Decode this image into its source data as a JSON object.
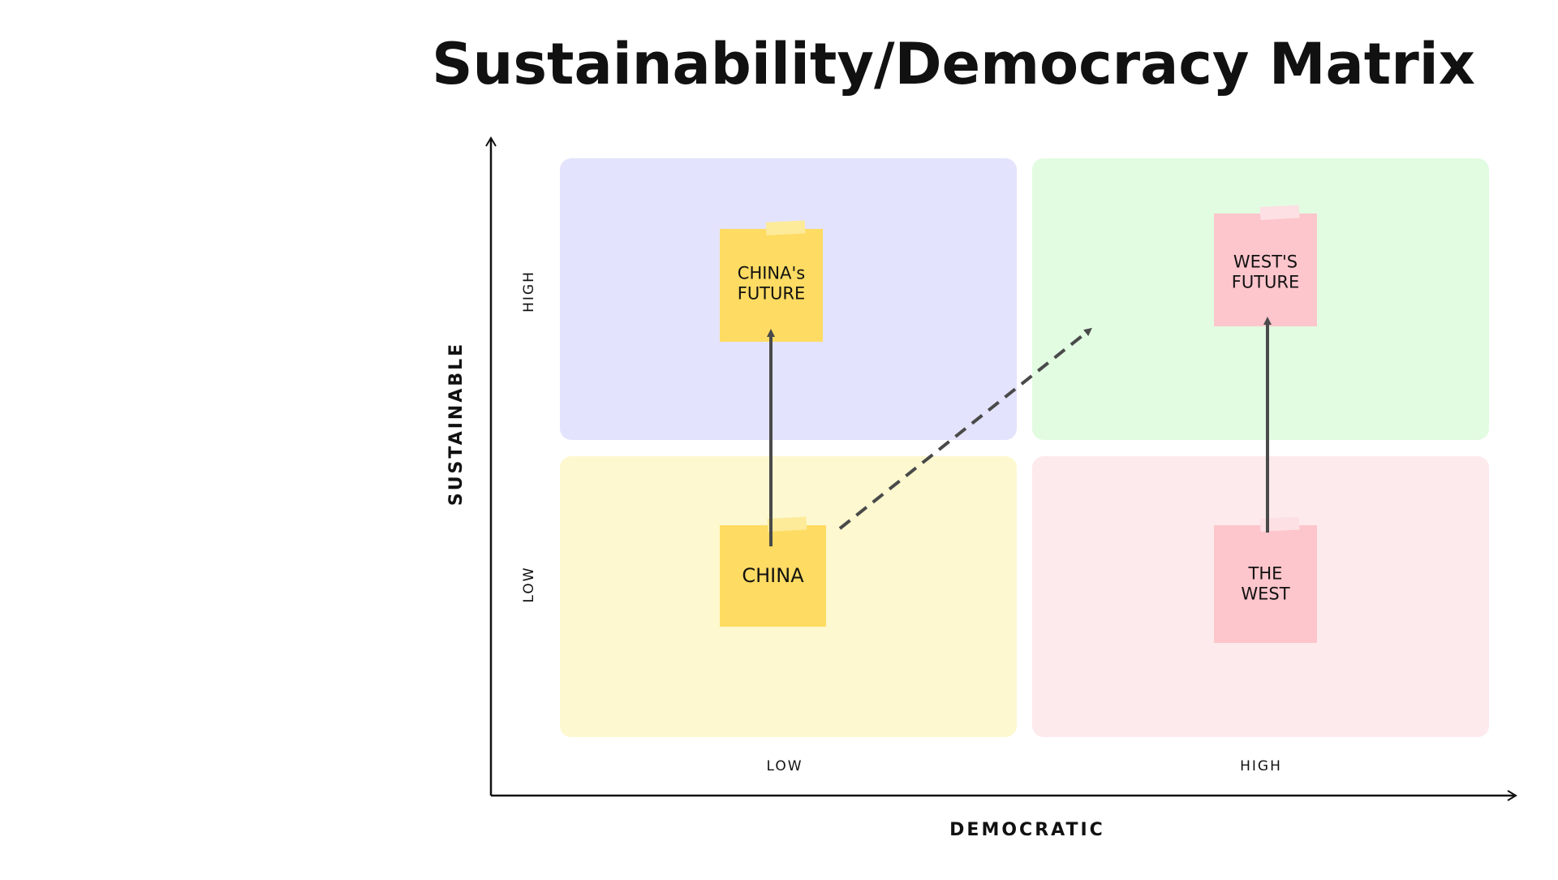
{
  "title": "Sustainability/Democracy Matrix",
  "y_axis": {
    "label": "SUSTAINABLE",
    "high": "HIGH",
    "low": "LOW"
  },
  "x_axis": {
    "label": "DEMOCRATIC",
    "low": "LOW",
    "high": "HIGH"
  },
  "notes": [
    {
      "lines": [
        "CHINA's",
        "FUTURE"
      ]
    },
    {
      "lines": [
        "CHINA"
      ]
    },
    {
      "lines": [
        "WEST'S",
        "FUTURE"
      ]
    },
    {
      "lines": [
        "THE",
        "WEST"
      ]
    }
  ]
}
